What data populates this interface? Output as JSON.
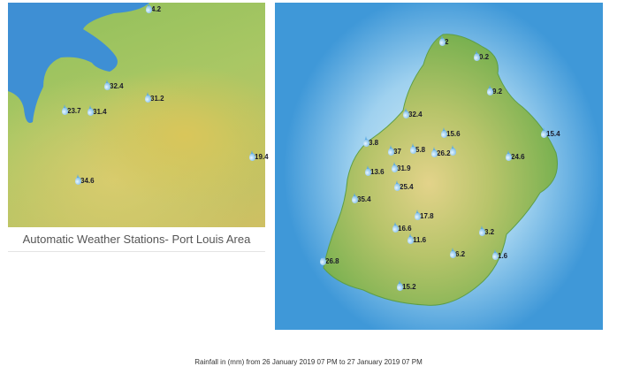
{
  "left_map": {
    "caption": "Automatic Weather Stations- Port Louis Area",
    "stations": [
      "4.2",
      "32.4",
      "31.2",
      "23.7",
      "31.4",
      "19.4",
      "34.6"
    ]
  },
  "right_map": {
    "stations": [
      "2",
      "0.2",
      "9.2",
      "32.4",
      "15.6",
      "15.4",
      "3.8",
      "37",
      "5.8",
      "26.2",
      "",
      "24.6",
      "31.9",
      "13.6",
      "25.4",
      "35.4",
      "17.8",
      "16.6",
      "11.6",
      "3.2",
      "6.2",
      "1.6",
      "26.8",
      "15.2"
    ]
  },
  "footer": "Rainfall in (mm) from 26 January 2019 07 PM to 27 January 2019 07 PM",
  "colors": {
    "sea": "#3f98d8",
    "land": "#8fbf5a",
    "highland": "#d8cc6e",
    "drop": "#5aaae3"
  }
}
